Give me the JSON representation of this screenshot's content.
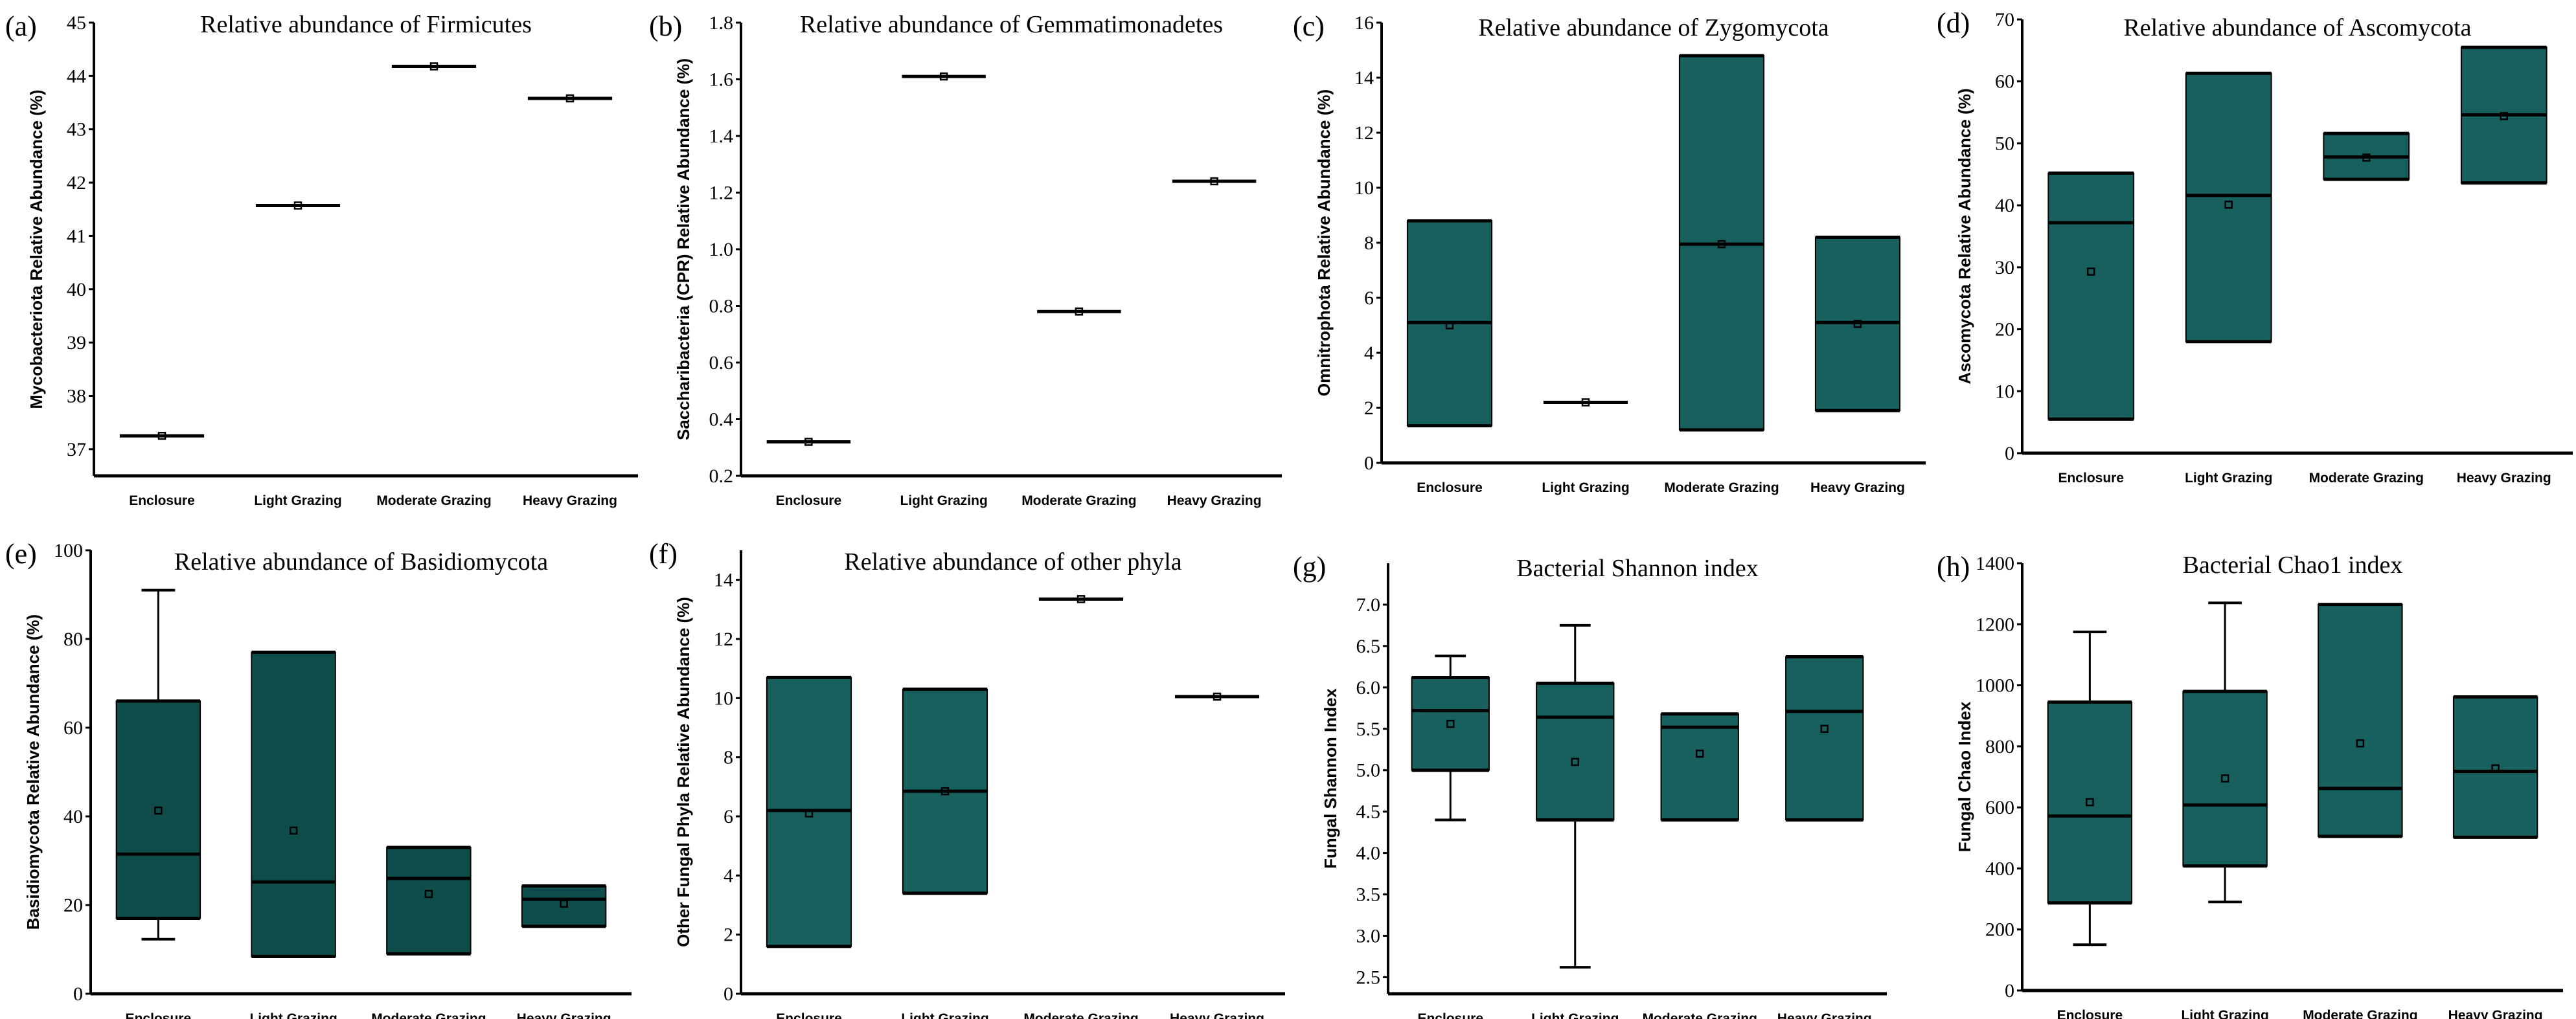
{
  "colors": {
    "box_fill": "#17605d",
    "box_fill_dark": "#0f4d4b",
    "line": "#000000"
  },
  "chart_data": [
    {
      "type": "box",
      "letter": "(a)",
      "title": "Relative abundance of Firmicutes",
      "ylabel": "Mycobacteriota Relative Abundance (%)",
      "ylim": [
        36.5,
        45
      ],
      "yticks": [
        37,
        38,
        39,
        40,
        41,
        42,
        43,
        44,
        45
      ],
      "categories": [
        "Enclosure",
        "Light Grazing",
        "Moderate Grazing",
        "Heavy Grazing"
      ],
      "boxes": [
        {
          "q1": 37.25,
          "median": 37.25,
          "q3": 37.25,
          "mean": 37.25
        },
        {
          "q1": 41.57,
          "median": 41.57,
          "q3": 41.57,
          "mean": 41.57
        },
        {
          "q1": 44.18,
          "median": 44.18,
          "q3": 44.18,
          "mean": 44.18
        },
        {
          "q1": 43.58,
          "median": 43.58,
          "q3": 43.58,
          "mean": 43.58
        }
      ]
    },
    {
      "type": "box",
      "letter": "(b)",
      "title": "Relative abundance of Gemmatimonadetes",
      "ylabel": "Saccharibacteria (CPR) Relative Abundance (%)",
      "ylim": [
        0.2,
        1.8
      ],
      "yticks": [
        "0.2",
        "0.4",
        "0.6",
        "0.8",
        "1.0",
        "1.2",
        "1.4",
        "1.6",
        "1.8"
      ],
      "categories": [
        "Enclosure",
        "Light Grazing",
        "Moderate Grazing",
        "Heavy Grazing"
      ],
      "boxes": [
        {
          "q1": 0.32,
          "median": 0.32,
          "q3": 0.32,
          "mean": 0.32
        },
        {
          "q1": 1.61,
          "median": 1.61,
          "q3": 1.61,
          "mean": 1.61
        },
        {
          "q1": 0.78,
          "median": 0.78,
          "q3": 0.78,
          "mean": 0.78
        },
        {
          "q1": 1.24,
          "median": 1.24,
          "q3": 1.24,
          "mean": 1.24
        }
      ]
    },
    {
      "type": "box",
      "letter": "(c)",
      "title": "Relative abundance of Zygomycota",
      "ylabel": "Omnitrophota Relative Abundance (%)",
      "ylim": [
        0,
        16
      ],
      "yticks": [
        0,
        2,
        4,
        6,
        8,
        10,
        12,
        14,
        16
      ],
      "categories": [
        "Enclosure",
        "Light Grazing",
        "Moderate Grazing",
        "Heavy Grazing"
      ],
      "boxes": [
        {
          "q1": 1.35,
          "median": 5.1,
          "q3": 8.8,
          "mean": 5.0
        },
        {
          "q1": 2.2,
          "median": 2.2,
          "q3": 2.2,
          "mean": 2.2
        },
        {
          "q1": 1.2,
          "median": 7.95,
          "q3": 14.8,
          "mean": 7.95
        },
        {
          "q1": 1.9,
          "median": 5.1,
          "q3": 8.2,
          "mean": 5.05
        }
      ]
    },
    {
      "type": "box",
      "letter": "(d)",
      "title": "Relative abundance of Ascomycota",
      "ylabel": "Ascomycota Relative Abundance (%)",
      "ylim": [
        0,
        70
      ],
      "yticks": [
        0,
        10,
        20,
        30,
        40,
        50,
        60,
        70
      ],
      "categories": [
        "Enclosure",
        "Light Grazing",
        "Moderate Grazing",
        "Heavy Grazing"
      ],
      "boxes": [
        {
          "q1": 5.5,
          "median": 37.2,
          "q3": 45.2,
          "mean": 29.3
        },
        {
          "q1": 18,
          "median": 41.6,
          "q3": 61.3,
          "mean": 40.1
        },
        {
          "q1": 44.2,
          "median": 47.8,
          "q3": 51.6,
          "mean": 47.7
        },
        {
          "q1": 43.6,
          "median": 54.6,
          "q3": 65.5,
          "mean": 54.4
        }
      ]
    },
    {
      "type": "box",
      "letter": "(e)",
      "title": "Relative abundance of Basidiomycota",
      "ylabel": "Basidiomycota Relative Abundance (%)",
      "ylim": [
        0,
        100
      ],
      "yticks": [
        0,
        20,
        40,
        60,
        80,
        100
      ],
      "dark": true,
      "categories": [
        "Enclosure",
        "Light Grazing",
        "Moderate Grazing",
        "Heavy Grazing"
      ],
      "boxes": [
        {
          "min": 12.3,
          "q1": 17,
          "median": 31.5,
          "q3": 66,
          "max": 91,
          "mean": 41.3
        },
        {
          "q1": 8.4,
          "median": 25.2,
          "q3": 77,
          "mean": 36.8
        },
        {
          "q1": 9,
          "median": 26,
          "q3": 33,
          "mean": 22.5
        },
        {
          "q1": 15.2,
          "median": 21.3,
          "q3": 24.3,
          "mean": 20.3
        }
      ]
    },
    {
      "type": "box",
      "letter": "(f)",
      "title": "Relative abundance of other phyla",
      "ylabel": "Other Fungal Phyla Relative Abundance (%)",
      "ylim": [
        0,
        15
      ],
      "yticks": [
        0,
        2,
        4,
        6,
        8,
        10,
        12,
        14
      ],
      "categories": [
        "Enclosure",
        "Light Grazing",
        "Moderate Grazing",
        "Heavy Grazing"
      ],
      "boxes": [
        {
          "q1": 1.6,
          "median": 6.2,
          "q3": 10.7,
          "mean": 6.1
        },
        {
          "q1": 3.4,
          "median": 6.85,
          "q3": 10.3,
          "mean": 6.85
        },
        {
          "q1": 13.35,
          "median": 13.35,
          "q3": 13.35,
          "mean": 13.35
        },
        {
          "q1": 10.05,
          "median": 10.05,
          "q3": 10.05,
          "mean": 10.05
        }
      ]
    },
    {
      "type": "box",
      "letter": "(g)",
      "title": "Bacterial Shannon index",
      "ylabel": "Fungal Shannon Index",
      "ylim": [
        2.3,
        7.5
      ],
      "yticks": [
        "2.5",
        "3.0",
        "3.5",
        "4.0",
        "4.5",
        "5.0",
        "5.5",
        "6.0",
        "6.5",
        "7.0"
      ],
      "categories": [
        "Enclosure",
        "Light Grazing",
        "Moderate Grazing",
        "Heavy Grazing"
      ],
      "boxes": [
        {
          "min": 4.4,
          "q1": 5.0,
          "median": 5.72,
          "q3": 6.12,
          "max": 6.38,
          "mean": 5.56
        },
        {
          "min": 2.62,
          "q1": 4.4,
          "median": 5.64,
          "q3": 6.05,
          "max": 6.75,
          "mean": 5.1
        },
        {
          "q1": 4.4,
          "median": 5.52,
          "q3": 5.68,
          "mean": 5.2
        },
        {
          "q1": 4.4,
          "median": 5.71,
          "q3": 6.37,
          "mean": 5.5
        }
      ]
    },
    {
      "type": "box",
      "letter": "(h)",
      "title": "Bacterial Chao1 index",
      "ylabel": "Fungal Chao Index",
      "ylim": [
        0,
        1400
      ],
      "yticks": [
        0,
        200,
        400,
        600,
        800,
        1000,
        1200,
        1400
      ],
      "categories": [
        "Enclosure",
        "Light Grazing",
        "Moderate Grazing",
        "Heavy Grazing"
      ],
      "boxes": [
        {
          "min": 150,
          "q1": 287,
          "median": 572,
          "q3": 945,
          "max": 1175,
          "mean": 617
        },
        {
          "min": 290,
          "q1": 408,
          "median": 608,
          "q3": 980,
          "max": 1270,
          "mean": 695
        },
        {
          "q1": 505,
          "median": 662,
          "q3": 1265,
          "mean": 810
        },
        {
          "q1": 502,
          "median": 718,
          "q3": 962,
          "mean": 728
        }
      ]
    }
  ]
}
